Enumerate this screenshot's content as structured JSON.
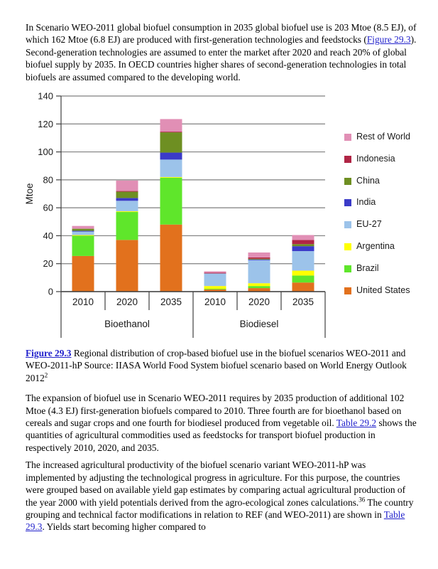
{
  "link_color": "#2222CC",
  "paragraph1": {
    "pre": "In Scenario WEO-2011 global biofuel consumption in 2035 global biofuel use is 203 Mtoe (8.5 EJ), of which 162 Mtoe (6.8 EJ) are produced with first-generation technologies and feedstocks (",
    "link": "Figure 29.3",
    "post": "). Second-generation technologies are assumed to enter the market after 2020 and reach 20% of global biofuel supply by 2035. In OECD countries higher shares of second-generation technologies in total biofuels are assumed compared to the developing world."
  },
  "figure_caption": {
    "link": "Figure 29.3",
    "text": " Regional distribution of crop-based biofuel use in the biofuel scenarios WEO-2011 and WEO-2011-hP Source: IIASA World Food System biofuel scenario based on World Energy Outlook 2012",
    "superscript": "2"
  },
  "paragraph2": {
    "pre": "The expansion of biofuel use in Scenario WEO-2011 requires by 2035 production of additional 102 Mtoe (4.3 EJ) first-generation biofuels compared to 2010. Three fourth are for bioethanol based on cereals and sugar crops and one fourth for biodiesel produced from vegetable oil. ",
    "link": "Table 29.2",
    "post": " shows the quantities of agricultural commodities used as feedstocks for transport biofuel production in respectively 2010, 2020, and 2035."
  },
  "paragraph3": {
    "pre": "The increased agricultural productivity of the biofuel scenario variant WEO-2011-hP was implemented by adjusting the technological progress in agriculture. For this purpose, the countries were grouped based on available yield gap estimates by comparing actual agricultural production of the year 2000 with yield potentials derived from the agro-ecological zones calculations.",
    "superscript": "36",
    "mid": " The country grouping and technical factor modifications in relation to REF (and WEO-2011) are shown in ",
    "link": "Table 29.3",
    "post": ". Yields start becoming higher compared to"
  },
  "chart_data": {
    "type": "bar",
    "stacked": true,
    "title": "",
    "ylabel": "Mtoe",
    "ylim": [
      0,
      140
    ],
    "ytick_step": 20,
    "grid": true,
    "gridline_color": "#7F7F7F",
    "axis_color": "#404040",
    "legend_position": "right",
    "group_labels": [
      "Bioethanol",
      "Biodiesel"
    ],
    "categories": [
      "2010",
      "2020",
      "2035",
      "2010",
      "2020",
      "2035"
    ],
    "stacking_note": "series listed bottom-to-top; values in Mtoe per category",
    "series": [
      {
        "name": "United States",
        "color": "#E2711D",
        "values": [
          25.5,
          37,
          48,
          1.5,
          2.5,
          6.5
        ]
      },
      {
        "name": "Brazil",
        "color": "#5FE62B",
        "values": [
          14.5,
          20,
          33.5,
          0.5,
          1.5,
          5
        ]
      },
      {
        "name": "Argentina",
        "color": "#FFFF00",
        "values": [
          0.5,
          0.5,
          0.5,
          2,
          2,
          3.5
        ]
      },
      {
        "name": "EU-27",
        "color": "#9CC3EA",
        "values": [
          2.5,
          7.5,
          12.5,
          9,
          16.5,
          14
        ]
      },
      {
        "name": "India",
        "color": "#3B3BC8",
        "values": [
          0.5,
          2,
          5,
          0,
          0.5,
          3.5
        ]
      },
      {
        "name": "China",
        "color": "#6E8F22",
        "values": [
          1.5,
          4.5,
          14.5,
          0,
          0.5,
          1.5
        ]
      },
      {
        "name": "Indonesia",
        "color": "#B02545",
        "values": [
          0,
          0.5,
          0.5,
          0.5,
          1,
          3
        ]
      },
      {
        "name": "Rest of World",
        "color": "#E18FB5",
        "values": [
          2,
          7.5,
          9,
          1,
          3.5,
          3.5
        ]
      }
    ],
    "legend_order_top_to_bottom": [
      "Rest of World",
      "Indonesia",
      "China",
      "India",
      "EU-27",
      "Argentina",
      "Brazil",
      "United States"
    ]
  }
}
